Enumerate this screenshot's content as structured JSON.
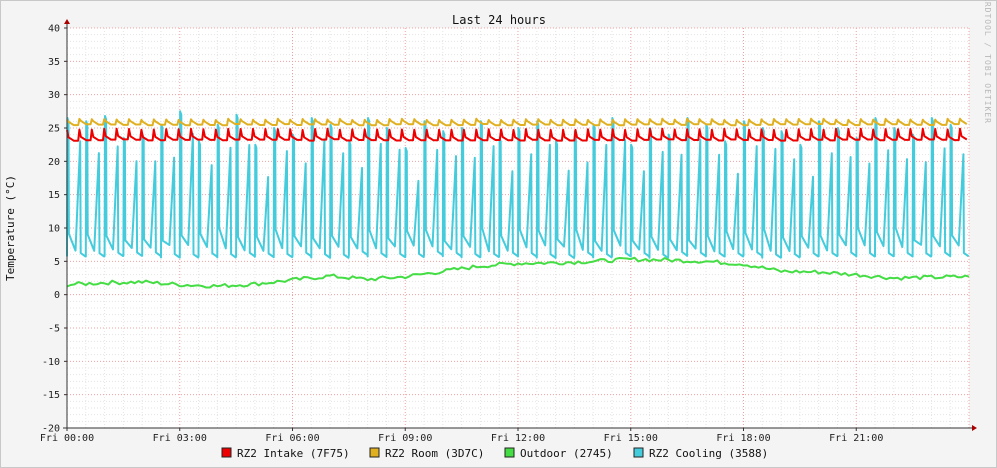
{
  "chart_data": {
    "type": "line",
    "title": "Last 24 hours",
    "ylabel": "Temperature (°C)",
    "vertical_label": "RRDTOOL / TOBI OETIKER",
    "ylim": [
      -20,
      40
    ],
    "yticks": [
      40,
      35,
      30,
      25,
      20,
      15,
      10,
      5,
      0,
      -5,
      -10,
      -15,
      -20
    ],
    "xlim": [
      "Fri 00:00",
      "Fri 24:00"
    ],
    "xticks": [
      "Fri 00:00",
      "Fri 03:00",
      "Fri 06:00",
      "Fri 09:00",
      "Fri 12:00",
      "Fri 15:00",
      "Fri 18:00",
      "Fri 21:00"
    ],
    "grid": true,
    "legend_position": "bottom",
    "series": [
      {
        "name": "RZ2 Intake (7F75)",
        "color": "#ee0000",
        "pattern": "sawtooth",
        "cycle_hours": 0.33,
        "high": 24.8,
        "low": 23.2
      },
      {
        "name": "RZ2 Room (3D7C)",
        "color": "#e0b020",
        "pattern": "sawtooth",
        "cycle_hours": 0.33,
        "high": 26.3,
        "low": 25.5
      },
      {
        "name": "Outdoor (2745)",
        "color": "#44dd44",
        "pattern": "series",
        "hours": [
          0,
          1,
          2,
          3,
          4,
          5,
          6,
          7,
          8,
          9,
          10,
          11,
          12,
          13,
          14,
          15,
          16,
          17,
          18,
          19,
          20,
          21,
          22,
          23,
          24
        ],
        "values": [
          1.5,
          1.8,
          1.9,
          1.5,
          1.3,
          1.6,
          2.2,
          2.8,
          2.3,
          2.7,
          3.5,
          4.3,
          4.7,
          4.8,
          5.0,
          5.3,
          5.2,
          5.0,
          4.6,
          3.5,
          3.4,
          3.0,
          2.5,
          2.6,
          2.7
        ]
      },
      {
        "name": "RZ2 Cooling (3588)",
        "color": "#44ccdd",
        "pattern": "spikes",
        "cycle_hours": 0.5,
        "base_low": 5.5,
        "peaks": [
          26.5,
          26.0,
          26.8,
          23.5,
          24.0,
          25.5,
          27.5,
          23.0,
          25.5,
          27.0,
          22.5,
          25.0,
          24.0,
          26.5,
          25.5,
          23.0,
          26.5,
          25.0,
          22.0,
          26.0,
          24.5,
          25.0,
          26.0,
          23.5,
          25.0,
          26.0,
          23.0,
          24.5,
          25.5,
          26.5,
          22.5,
          25.0,
          24.0,
          26.5,
          25.5,
          23.0,
          26.0,
          25.0,
          24.5,
          22.5,
          26.0,
          25.0,
          23.5,
          26.5,
          25.0,
          24.0,
          26.5,
          25.5
        ]
      }
    ]
  },
  "legend": [
    {
      "label": "RZ2 Intake (7F75)",
      "color": "#ee0000"
    },
    {
      "label": "RZ2 Room (3D7C)",
      "color": "#e0b020"
    },
    {
      "label": "Outdoor (2745)",
      "color": "#44dd44"
    },
    {
      "label": "RZ2 Cooling (3588)",
      "color": "#44ccdd"
    }
  ]
}
